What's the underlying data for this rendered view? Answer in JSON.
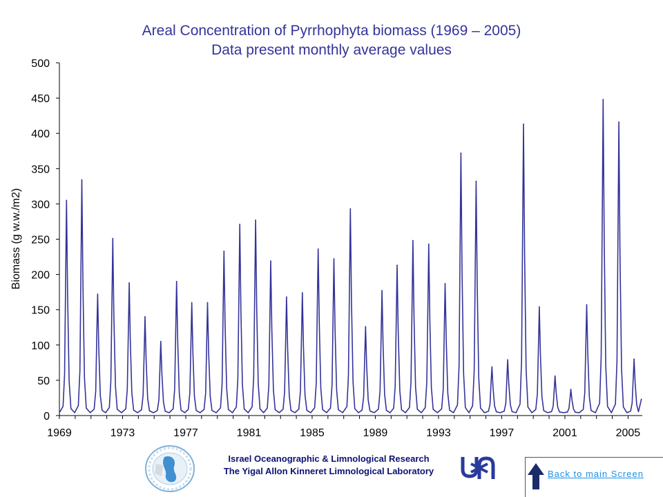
{
  "chart_data": {
    "type": "line",
    "title": "Areal Concentration of Pyrrhophyta biomass (1969 – 2005)",
    "subtitle": "Data present monthly average values",
    "xlabel": "",
    "ylabel": "Biomass (g w.w./m2)",
    "xlim": [
      1969,
      2005.9
    ],
    "ylim": [
      0,
      500
    ],
    "x_ticks": [
      "1969",
      "1973",
      "1977",
      "1981",
      "1985",
      "1989",
      "1993",
      "1997",
      "2001",
      "2005"
    ],
    "y_ticks": [
      "0",
      "50",
      "100",
      "150",
      "200",
      "250",
      "300",
      "350",
      "400",
      "450",
      "500"
    ],
    "grid": false,
    "series_color": "#333399",
    "base_value": 4,
    "annual_peaks": [
      {
        "year": 1969,
        "x": 1969.45,
        "value": 305
      },
      {
        "year": 1970,
        "x": 1970.42,
        "value": 334
      },
      {
        "year": 1971,
        "x": 1971.42,
        "value": 172
      },
      {
        "year": 1972,
        "x": 1972.38,
        "value": 251
      },
      {
        "year": 1973,
        "x": 1973.42,
        "value": 188
      },
      {
        "year": 1974,
        "x": 1974.42,
        "value": 140
      },
      {
        "year": 1975,
        "x": 1975.42,
        "value": 105
      },
      {
        "year": 1976,
        "x": 1976.42,
        "value": 190
      },
      {
        "year": 1977,
        "x": 1977.38,
        "value": 160
      },
      {
        "year": 1978,
        "x": 1978.38,
        "value": 160
      },
      {
        "year": 1979,
        "x": 1979.42,
        "value": 233
      },
      {
        "year": 1980,
        "x": 1980.42,
        "value": 271
      },
      {
        "year": 1981,
        "x": 1981.42,
        "value": 277
      },
      {
        "year": 1982,
        "x": 1982.38,
        "value": 219
      },
      {
        "year": 1983,
        "x": 1983.38,
        "value": 168
      },
      {
        "year": 1984,
        "x": 1984.38,
        "value": 174
      },
      {
        "year": 1985,
        "x": 1985.38,
        "value": 236
      },
      {
        "year": 1986,
        "x": 1986.38,
        "value": 222
      },
      {
        "year": 1987,
        "x": 1987.42,
        "value": 293
      },
      {
        "year": 1988,
        "x": 1988.38,
        "value": 126
      },
      {
        "year": 1989,
        "x": 1989.42,
        "value": 177
      },
      {
        "year": 1990,
        "x": 1990.38,
        "value": 213
      },
      {
        "year": 1991,
        "x": 1991.38,
        "value": 248
      },
      {
        "year": 1992,
        "x": 1992.38,
        "value": 243
      },
      {
        "year": 1993,
        "x": 1993.42,
        "value": 187
      },
      {
        "year": 1994,
        "x": 1994.42,
        "value": 372
      },
      {
        "year": 1995,
        "x": 1995.38,
        "value": 332
      },
      {
        "year": 1996,
        "x": 1996.38,
        "value": 69
      },
      {
        "year": 1997,
        "x": 1997.38,
        "value": 79
      },
      {
        "year": 1998,
        "x": 1998.38,
        "value": 413
      },
      {
        "year": 1999,
        "x": 1999.38,
        "value": 154
      },
      {
        "year": 2000,
        "x": 2000.38,
        "value": 56
      },
      {
        "year": 2001,
        "x": 2001.38,
        "value": 37
      },
      {
        "year": 2002,
        "x": 2002.38,
        "value": 157
      },
      {
        "year": 2003,
        "x": 2003.42,
        "value": 448
      },
      {
        "year": 2004,
        "x": 2004.42,
        "value": 416
      },
      {
        "year": 2005,
        "x": 2005.38,
        "value": 80
      }
    ]
  },
  "footer": {
    "org_line1": "Israel Oceanographic & Limnological Research",
    "org_line2": "The Yigal Allon Kinneret Limnological Laboratory",
    "back_link": "Back to main Screen "
  }
}
